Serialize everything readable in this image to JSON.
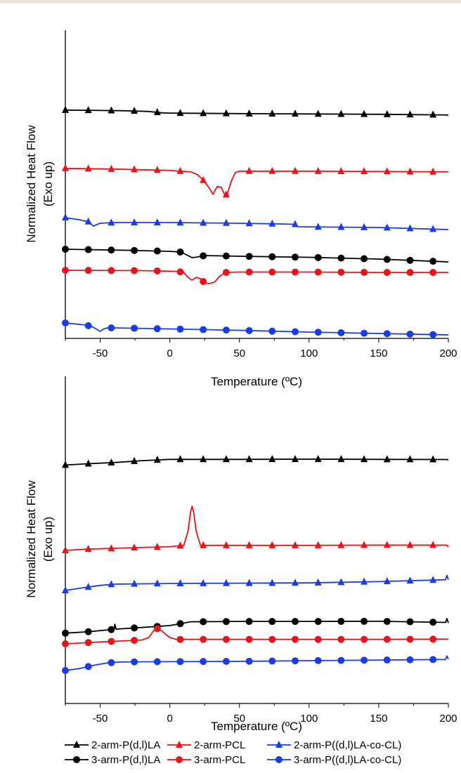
{
  "chart_data": [
    {
      "type": "line",
      "panel": "top",
      "xlabel": "Temperature (ºC)",
      "ylabel": [
        "Normalized Heat Flow",
        "(Exo up)"
      ],
      "xlim": [
        -75,
        200
      ],
      "xticks": [
        -50,
        0,
        50,
        100,
        150,
        200
      ],
      "y_ticks_shown": false,
      "series": [
        {
          "name": "2-arm-P(d,l)LA",
          "color": "#000000",
          "marker": "triangle",
          "offset": 0.81,
          "x": [
            -75,
            -60,
            -30,
            -15,
            -10,
            -5,
            0,
            50,
            100,
            150,
            200
          ],
          "y": [
            -0.6,
            -0.8,
            -1.5,
            -2.5,
            -3.5,
            -4.5,
            -4.8,
            -5.5,
            -6,
            -6.5,
            -7.5
          ]
        },
        {
          "name": "2-arm-PCL",
          "color": "#e8141c",
          "marker": "triangle",
          "offset": 0.59,
          "x": [
            -75,
            -40,
            0,
            15,
            20,
            24,
            28,
            31,
            34,
            37,
            39,
            41,
            44,
            47,
            50,
            100,
            150,
            200
          ],
          "y": [
            -1,
            -2,
            -4,
            -6,
            -10,
            -18,
            -28,
            -38,
            -27,
            -28,
            -37,
            -39,
            -20,
            -7,
            -5,
            -5,
            -5.5,
            -6
          ]
        },
        {
          "name": "2-arm-P((d,l)LA-co-CL)",
          "color": "#1a3be8",
          "marker": "triangle",
          "offset": 0.4,
          "x": [
            -75,
            -65,
            -58,
            -55,
            -50,
            -40,
            0,
            50,
            80,
            90,
            92,
            150,
            200
          ],
          "y": [
            0,
            -3,
            -6,
            -12,
            -8,
            -7,
            -7,
            -8,
            -9,
            -9.5,
            -13,
            -14,
            -17
          ]
        },
        {
          "name": "3-arm-P(d,l)LA",
          "color": "#000000",
          "marker": "circle",
          "offset": 0.28,
          "x": [
            -75,
            -30,
            0,
            8,
            12,
            16,
            20,
            25,
            50,
            100,
            150,
            200
          ],
          "y": [
            0,
            -1.5,
            -3,
            -4,
            -8,
            -12,
            -11,
            -9,
            -10,
            -11.5,
            -14,
            -18
          ]
        },
        {
          "name": "3-arm-PCL",
          "color": "#e8141c",
          "marker": "circle",
          "offset": 0.2,
          "x": [
            -75,
            -20,
            5,
            10,
            13,
            16,
            19,
            22,
            25,
            28,
            32,
            36,
            40,
            50,
            100,
            150,
            200
          ],
          "y": [
            0,
            -0.5,
            -1.5,
            -3,
            -10,
            -14,
            -10,
            -12,
            -18,
            -19,
            -17,
            -8,
            -3,
            -2.5,
            -2.5,
            -3,
            -3
          ]
        },
        {
          "name": "3-arm-P((d,l)LA-co-CL)",
          "color": "#1a3be8",
          "marker": "circle",
          "offset": 0,
          "x": [
            -75,
            -60,
            -55,
            -50,
            -47,
            -44,
            -40,
            0,
            50,
            100,
            150,
            200
          ],
          "y": [
            0,
            -3,
            -6,
            -12,
            -8,
            -7,
            -7,
            -8.5,
            -10.5,
            -13,
            -15,
            -17
          ]
        }
      ]
    },
    {
      "type": "line",
      "panel": "bottom",
      "xlabel": "Temperature (ºC)",
      "ylabel": [
        "Normalized Heat Flow",
        "(Exo up)"
      ],
      "xlim": [
        -75,
        200
      ],
      "xticks": [
        -50,
        0,
        50,
        100,
        150,
        200
      ],
      "y_ticks_shown": false,
      "series": [
        {
          "name": "2-arm-P(d,l)LA",
          "color": "#000000",
          "marker": "triangle",
          "offset": 0.77,
          "x": [
            -75,
            -60,
            -40,
            -20,
            0,
            50,
            100,
            150,
            199,
            200
          ],
          "y": [
            0,
            2,
            4,
            7,
            9,
            9,
            9.3,
            9,
            8.8,
            8
          ]
        },
        {
          "name": "2-arm-PCL",
          "color": "#e8141c",
          "marker": "triangle",
          "offset": 0.45,
          "x": [
            -75,
            -60,
            -30,
            0,
            10,
            13,
            15,
            16,
            17,
            19,
            22,
            50,
            100,
            150,
            199,
            200
          ],
          "y": [
            0,
            2,
            4,
            6,
            8,
            30,
            62,
            70,
            62,
            30,
            8,
            8,
            8,
            8.5,
            8.5,
            5
          ]
        },
        {
          "name": "2-arm-P((d,l)LA-co-CL)",
          "color": "#1a3be8",
          "marker": "triangle",
          "offset": 0.3,
          "x": [
            -75,
            -60,
            -50,
            -40,
            0,
            50,
            100,
            150,
            198,
            199,
            200
          ],
          "y": [
            0,
            5,
            8,
            10,
            11,
            11.5,
            12,
            14,
            17,
            24,
            17
          ]
        },
        {
          "name": "3-arm-P(d,l)LA",
          "color": "#000000",
          "marker": "circle",
          "offset": 0.14,
          "x": [
            -75,
            -60,
            -45,
            -40,
            -39.5,
            -38.5,
            -37,
            -20,
            0,
            15,
            50,
            100,
            150,
            198,
            199,
            200
          ],
          "y": [
            0,
            2,
            5,
            6,
            14,
            6,
            6.5,
            9,
            12,
            18,
            18.5,
            18.5,
            18.8,
            17,
            23,
            16
          ]
        },
        {
          "name": "3-arm-PCL",
          "color": "#e8141c",
          "marker": "circle",
          "offset": 0.1,
          "x": [
            -75,
            -50,
            -20,
            -15,
            -12,
            -9,
            -6,
            -3,
            0,
            5,
            50,
            100,
            150,
            200
          ],
          "y": [
            0,
            3,
            6,
            10,
            20,
            24,
            21,
            15,
            10,
            7,
            7,
            7,
            7,
            7.5
          ]
        },
        {
          "name": "3-arm-P((d,l)LA-co-CL)",
          "color": "#1a3be8",
          "marker": "circle",
          "offset": 0,
          "x": [
            -75,
            -65,
            -55,
            -45,
            -35,
            0,
            50,
            100,
            150,
            198,
            199,
            200
          ],
          "y": [
            0,
            3,
            8,
            12,
            13.5,
            14,
            14.5,
            15.5,
            16.5,
            17.5,
            23,
            18
          ]
        }
      ]
    }
  ],
  "legend": {
    "placement": "bottom",
    "items": [
      {
        "label": "2-arm-P(d,l)LA",
        "color": "#000000",
        "marker": "triangle"
      },
      {
        "label": "2-arm-PCL",
        "color": "#e8141c",
        "marker": "triangle"
      },
      {
        "label": "2-arm-P((d,l)LA-co-CL)",
        "color": "#1a3be8",
        "marker": "triangle"
      },
      {
        "label": "3-arm-P(d,l)LA",
        "color": "#000000",
        "marker": "circle"
      },
      {
        "label": "3-arm-PCL",
        "color": "#e8141c",
        "marker": "circle"
      },
      {
        "label": "3-arm-P((d,l)LA-co-CL)",
        "color": "#1a3be8",
        "marker": "circle"
      }
    ]
  }
}
